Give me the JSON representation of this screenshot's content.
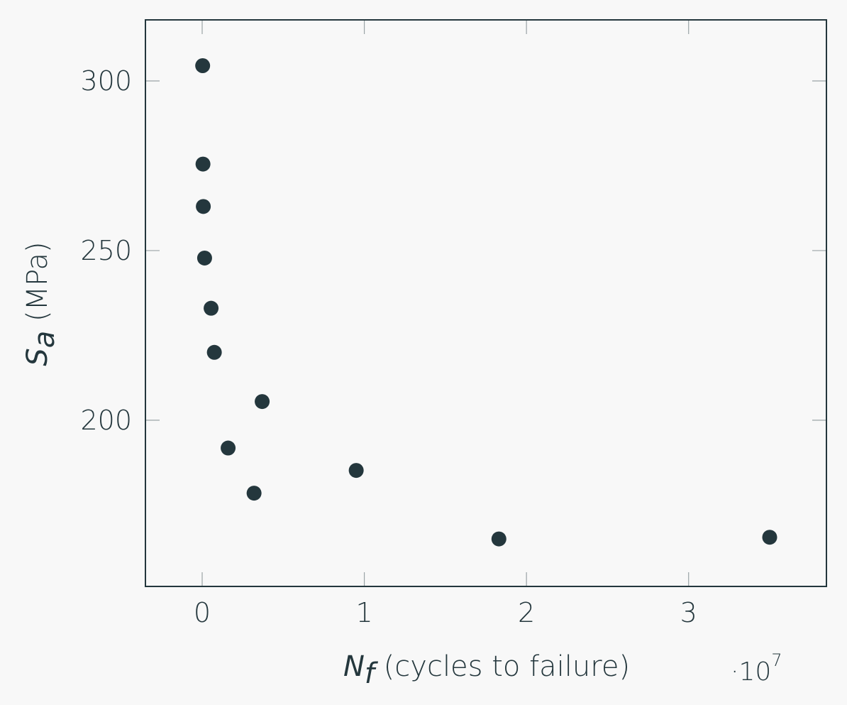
{
  "chart_data": {
    "type": "scatter",
    "x_label": {
      "symbol": "N",
      "subscript": "f",
      "text": " (cycles to failure)"
    },
    "y_label": {
      "symbol": "S",
      "subscript": "a",
      "text": " (MPa)"
    },
    "x_multiplier": {
      "prefix": "·10",
      "exponent": "7"
    },
    "x_ticks": [
      0,
      1,
      2,
      3
    ],
    "x_tick_labels": [
      "0",
      "1",
      "2",
      "3"
    ],
    "y_ticks": [
      200,
      250,
      300
    ],
    "y_tick_labels": [
      "200",
      "250",
      "300"
    ],
    "xlim": [
      -0.35,
      3.85
    ],
    "ylim": [
      151,
      318
    ],
    "grid": false,
    "marker_color": "#24373d",
    "axis_color": "#24373d",
    "background": "#f8f8f8",
    "points": [
      {
        "x": 0.003,
        "y": 304.5
      },
      {
        "x": 0.005,
        "y": 275.5
      },
      {
        "x": 0.007,
        "y": 263.0
      },
      {
        "x": 0.015,
        "y": 247.8
      },
      {
        "x": 0.055,
        "y": 233.0
      },
      {
        "x": 0.075,
        "y": 220.0
      },
      {
        "x": 0.37,
        "y": 205.5
      },
      {
        "x": 0.16,
        "y": 191.8
      },
      {
        "x": 0.32,
        "y": 178.5
      },
      {
        "x": 0.95,
        "y": 185.2
      },
      {
        "x": 1.83,
        "y": 165.0
      },
      {
        "x": 3.5,
        "y": 165.5
      }
    ]
  }
}
